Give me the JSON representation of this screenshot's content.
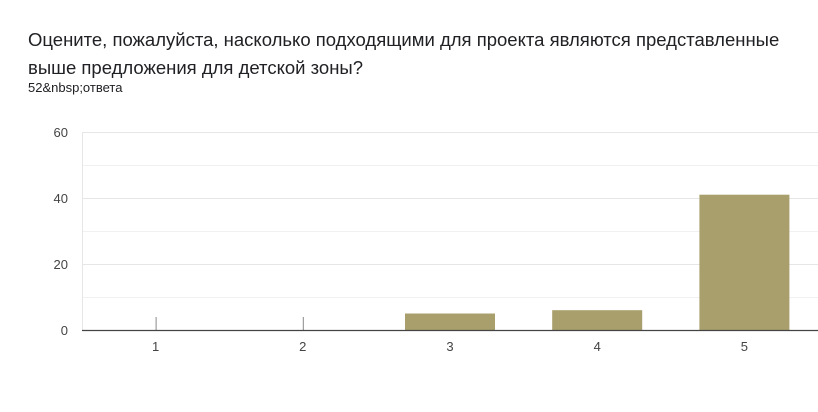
{
  "question": {
    "title": "Оцените, пожалуйста, насколько подходящими для проекта являются представленные выше предложения для детской зоны?",
    "responses": "52&nbsp;ответа"
  },
  "colors": {
    "bar": "#a89f6c",
    "grid": "#e6e6e6",
    "axis": "#444444",
    "text": "#202124"
  },
  "chart_data": {
    "type": "bar",
    "title": "",
    "xlabel": "",
    "ylabel": "",
    "categories": [
      "1",
      "2",
      "3",
      "4",
      "5"
    ],
    "values": [
      0,
      0,
      5,
      6,
      41
    ],
    "ylim": [
      0,
      60
    ],
    "yticks": [
      0,
      20,
      40,
      60
    ],
    "grid": true,
    "legend": "none"
  }
}
